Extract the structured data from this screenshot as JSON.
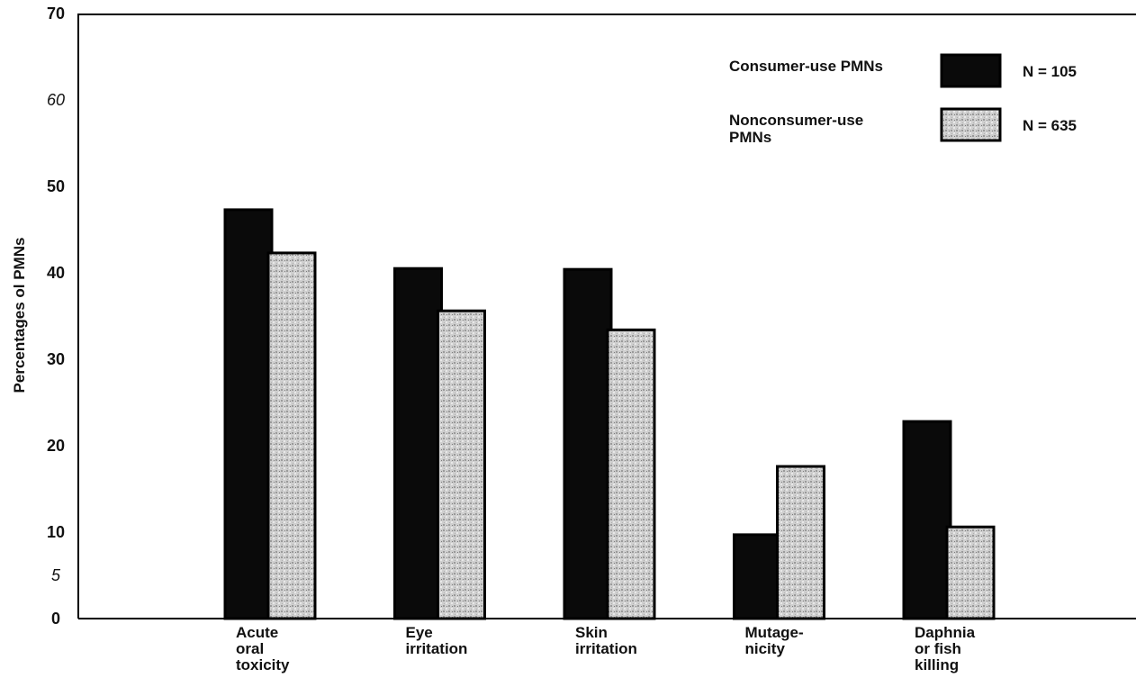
{
  "chart_data": {
    "type": "bar",
    "ylabel": "Percentages ol PMNs",
    "xlabel": "",
    "ylim": [
      0,
      70
    ],
    "y_ticks": [
      {
        "value": 70,
        "label": "70",
        "italic": false
      },
      {
        "value": 60,
        "label": "60",
        "italic": true
      },
      {
        "value": 50,
        "label": "50",
        "italic": false
      },
      {
        "value": 40,
        "label": "40",
        "italic": false
      },
      {
        "value": 30,
        "label": "30",
        "italic": false
      },
      {
        "value": 20,
        "label": "20",
        "italic": false
      },
      {
        "value": 10,
        "label": "10",
        "italic": false
      },
      {
        "value": 5,
        "label": "5",
        "italic": true
      },
      {
        "value": 0,
        "label": "0",
        "italic": false
      }
    ],
    "categories": [
      [
        "Acute",
        "oral",
        "toxicity"
      ],
      [
        "Eye",
        "irritation"
      ],
      [
        "Skin",
        "irritation"
      ],
      [
        "Mutage-",
        "nicity"
      ],
      [
        "Daphnia",
        "or fish",
        "killing"
      ]
    ],
    "series": [
      {
        "name_lines": [
          "Consumer-use  PMNs"
        ],
        "n_label": "N  =  105",
        "color": "#0a0a0a",
        "values": [
          47.3,
          40.5,
          40.4,
          9.7,
          22.8
        ]
      },
      {
        "name_lines": [
          "Nonconsumer-use",
          "PMNs"
        ],
        "n_label": "N  =  635",
        "color": "#cfcfcf",
        "values": [
          42.3,
          35.6,
          33.4,
          17.6,
          10.6
        ]
      }
    ],
    "legend_position": "top-right",
    "grid": false
  }
}
